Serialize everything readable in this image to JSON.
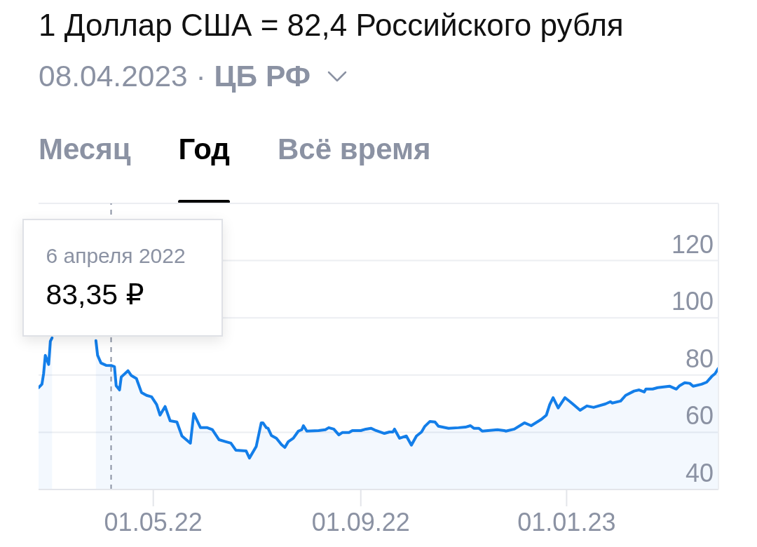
{
  "chart_data": {
    "type": "area",
    "title": "1 Доллар США = 82,4 Российского рубля",
    "subtitle": "08.04.2023 · ЦБ РФ",
    "annotations": [
      "Месяц",
      "Год",
      "Всё время",
      {
        "text": "6 апреля 2022",
        "x": "2022-04-06"
      },
      {
        "text": "83,35 ₽",
        "x": "2022-04-06",
        "y": 83.35
      }
    ],
    "x": [
      "2022-02-22",
      "2022-02-24",
      "2022-02-25",
      "2022-02-26",
      "2022-02-28",
      "2022-03-01",
      "2022-03-02",
      "2022-03-15",
      "2022-03-28",
      "2022-03-29",
      "2022-03-31",
      "2022-04-03",
      "2022-04-06",
      "2022-04-08",
      "2022-04-09",
      "2022-04-11",
      "2022-04-12",
      "2022-04-16",
      "2022-04-18",
      "2022-04-21",
      "2022-04-24",
      "2022-04-27",
      "2022-04-30",
      "2022-05-03",
      "2022-05-05",
      "2022-05-08",
      "2022-05-11",
      "2022-05-15",
      "2022-05-18",
      "2022-05-23",
      "2022-05-25",
      "2022-05-29",
      "2022-06-02",
      "2022-06-05",
      "2022-06-09",
      "2022-06-13",
      "2022-06-16",
      "2022-06-19",
      "2022-06-25",
      "2022-06-27",
      "2022-07-01",
      "2022-07-04",
      "2022-07-05",
      "2022-07-07",
      "2022-07-08",
      "2022-07-10",
      "2022-07-13",
      "2022-07-16",
      "2022-07-18",
      "2022-07-20",
      "2022-07-23",
      "2022-07-26",
      "2022-07-28",
      "2022-07-29",
      "2022-07-31",
      "2022-08-07",
      "2022-08-11",
      "2022-08-13",
      "2022-08-16",
      "2022-08-19",
      "2022-08-21",
      "2022-08-25",
      "2022-08-27",
      "2022-09-01",
      "2022-09-04",
      "2022-09-07",
      "2022-09-10",
      "2022-09-15",
      "2022-09-18",
      "2022-09-20",
      "2022-09-21",
      "2022-09-24",
      "2022-09-28",
      "2022-10-01",
      "2022-10-04",
      "2022-10-07",
      "2022-10-09",
      "2022-10-12",
      "2022-10-15",
      "2022-10-17",
      "2022-10-23",
      "2022-10-29",
      "2022-11-02",
      "2022-11-05",
      "2022-11-07",
      "2022-11-10",
      "2022-11-12",
      "2022-11-21",
      "2022-11-25",
      "2022-11-26",
      "2022-12-01",
      "2022-12-07",
      "2022-12-11",
      "2022-12-17",
      "2022-12-20",
      "2022-12-22",
      "2022-12-24",
      "2022-12-27",
      "2022-12-31",
      "2023-01-03",
      "2023-01-05",
      "2023-01-09",
      "2023-01-13",
      "2023-01-17",
      "2023-01-24",
      "2023-01-27",
      "2023-01-28",
      "2023-02-02",
      "2023-02-05",
      "2023-02-10",
      "2023-02-13",
      "2023-02-16",
      "2023-02-17",
      "2023-02-21",
      "2023-02-24",
      "2023-03-03",
      "2023-03-07",
      "2023-03-09",
      "2023-03-12",
      "2023-03-15",
      "2023-03-17",
      "2023-03-22",
      "2023-03-25",
      "2023-03-28",
      "2023-03-30",
      "2023-04-01"
    ],
    "series": [
      {
        "color": "#137ee9",
        "values": [
          75.6,
          76.8,
          80.5,
          86.9,
          83.7,
          91.8,
          93,
          null,
          92,
          86.9,
          84.2,
          83.4,
          83.35,
          82.9,
          76.3,
          74.8,
          79.3,
          81.5,
          79.8,
          78.8,
          73.9,
          72.9,
          72.4,
          69.7,
          66,
          69,
          64,
          63.6,
          58.7,
          56.2,
          66.5,
          61.6,
          61.6,
          60.9,
          57.4,
          56.7,
          56.2,
          53.7,
          53.5,
          51,
          55,
          63.3,
          63.3,
          61.6,
          61.4,
          58.9,
          57.9,
          55.7,
          54.7,
          56.7,
          57.9,
          60.4,
          60.9,
          62.3,
          60.4,
          60.6,
          60.9,
          61.6,
          61.1,
          59.1,
          59.9,
          59.9,
          60.6,
          60.6,
          61.1,
          61.4,
          60.6,
          59.6,
          60.1,
          60.1,
          61.1,
          57.9,
          58.7,
          55.5,
          58.7,
          60.1,
          62.1,
          63.8,
          63.6,
          62.1,
          61.4,
          61.6,
          61.8,
          62.3,
          61.4,
          61.4,
          60.4,
          60.9,
          60.6,
          60.4,
          61.1,
          63.3,
          62.3,
          64.5,
          66,
          69.7,
          72.1,
          68.5,
          72.1,
          70.7,
          69.7,
          67.7,
          69.2,
          68.7,
          69.9,
          70.7,
          70.2,
          70.9,
          72.9,
          74.4,
          74.8,
          74.1,
          75.1,
          75.1,
          75.6,
          76.1,
          75.1,
          76.3,
          77.3,
          77.1,
          76.1,
          76.8,
          77.5,
          79.5,
          80.5,
          82.4
        ]
      }
    ],
    "xlim": [
      "2022-02-22",
      "2023-04-01"
    ],
    "xticks": [
      {
        "value": "2022-05-01",
        "label": "01.05.22"
      },
      {
        "value": "2022-09-01",
        "label": "01.09.22"
      },
      {
        "value": "2023-01-01",
        "label": "01.01.23"
      }
    ],
    "ylim": [
      40,
      140
    ],
    "yticks": [
      40,
      60,
      80,
      100,
      120,
      {
        "value": 140,
        "label": null
      }
    ],
    "grid": "y",
    "ref_lines": [
      {
        "axis": "x",
        "value": "2022-04-06",
        "line_style": "dashed",
        "color": "#8b92a3"
      }
    ]
  }
}
